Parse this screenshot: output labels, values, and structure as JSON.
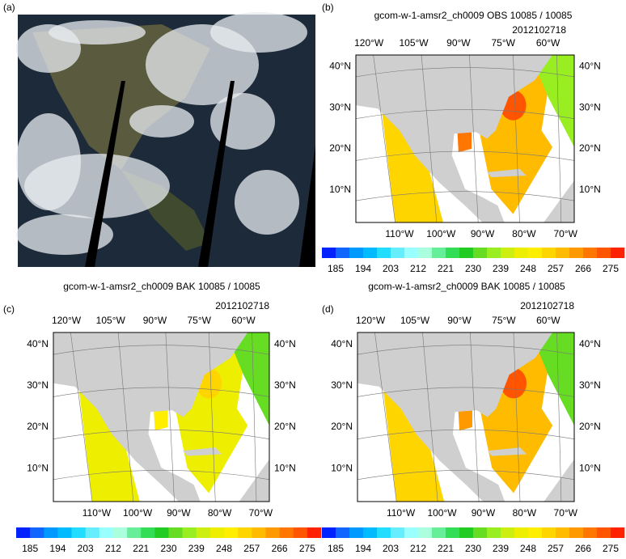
{
  "panels": [
    {
      "label": "(a)"
    },
    {
      "label": "(b)",
      "title": "gcom-w-1-amsr2_ch0009 OBS 10085 / 10085",
      "date": "2012102718"
    },
    {
      "label": "(c)",
      "title": "gcom-w-1-amsr2_ch0009 BAK 10085 / 10085",
      "date": "2012102718"
    },
    {
      "label": "(d)",
      "title": "gcom-w-1-amsr2_ch0009 BAK 10085 / 10085",
      "date": "2012102718"
    }
  ],
  "map_labels": {
    "top_lon": [
      "120°W",
      "105°W",
      "90°W",
      "75°W",
      "60°W"
    ],
    "bottom_lon": [
      "110°W",
      "100°W",
      "90°W",
      "80°W",
      "70°W"
    ],
    "lat": [
      "40°N",
      "30°N",
      "20°N",
      "10°N"
    ]
  },
  "colorbar": {
    "labels": [
      "185",
      "194",
      "203",
      "212",
      "221",
      "230",
      "239",
      "248",
      "257",
      "266",
      "275"
    ],
    "colors": [
      "#0022ff",
      "#1166ff",
      "#0099ff",
      "#00bbff",
      "#22ddff",
      "#66eeff",
      "#99ffff",
      "#aaffdd",
      "#66ee99",
      "#33dd55",
      "#22cc22",
      "#66dd22",
      "#99ee22",
      "#ccee11",
      "#eeee00",
      "#ffee00",
      "#ffd500",
      "#ffbb00",
      "#ff9900",
      "#ff7700",
      "#ff5500",
      "#ff2200"
    ]
  }
}
